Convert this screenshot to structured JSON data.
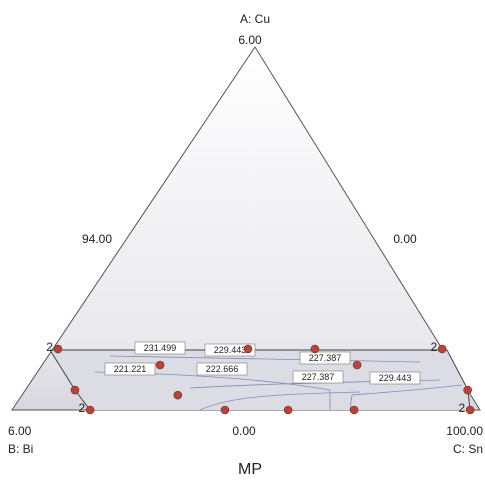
{
  "chart_data": {
    "type": "ternary",
    "vertex_labels": {
      "a": "A: Cu",
      "b": "B: Bi",
      "c": "C: Sn"
    },
    "vertex_values": {
      "a": "6.00",
      "b": "6.00",
      "c": "100.00"
    },
    "side_values": {
      "left": "94.00",
      "right": "0.00",
      "bottom": "0.00"
    },
    "x_label": "MP",
    "point_color": "#b5443a",
    "points": [
      {
        "a": 16.8,
        "b": 82.1,
        "c": 1.1
      },
      {
        "a": 16.8,
        "b": 41.5,
        "c": 41.7
      },
      {
        "a": 16.8,
        "b": 27.2,
        "c": 56.0
      },
      {
        "a": 16.8,
        "b": 0.0,
        "c": 83.2
      },
      {
        "a": 12.4,
        "b": 62.4,
        "c": 25.2
      },
      {
        "a": 12.4,
        "b": 20.3,
        "c": 67.3
      },
      {
        "a": 5.5,
        "b": 83.9,
        "c": 10.6
      },
      {
        "a": 5.5,
        "b": 0.0,
        "c": 94.5
      },
      {
        "a": 4.1,
        "b": 62.6,
        "c": 33.3
      },
      {
        "a": 0.0,
        "b": 83.3,
        "c": 16.7
      },
      {
        "a": 0.0,
        "b": 54.5,
        "c": 45.5
      },
      {
        "a": 0.0,
        "b": 41.0,
        "c": 59.0
      },
      {
        "a": 0.0,
        "b": 26.9,
        "c": 73.1
      },
      {
        "a": 0.0,
        "b": 2.1,
        "c": 97.9
      }
    ],
    "point_labels": [
      2,
      null,
      null,
      2,
      null,
      null,
      null,
      null,
      null,
      2,
      null,
      null,
      null,
      2
    ],
    "contours": [
      231.499,
      229.443,
      227.387,
      221.221,
      222.666,
      227.387,
      229.443
    ]
  }
}
